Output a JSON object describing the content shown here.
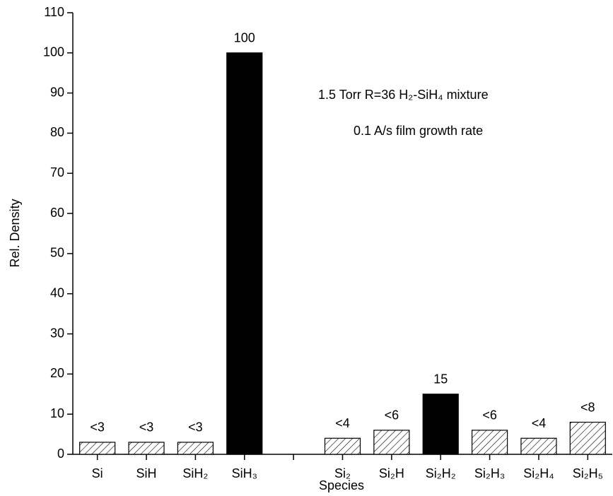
{
  "chart_data": {
    "type": "bar",
    "xlabel": "Species",
    "ylabel": "Rel. Density",
    "annotations": [
      "1.5 Torr R=36 H₂-SiH₄ mixture",
      "0.1 A/s film growth rate"
    ],
    "categories": [
      "Si",
      "SiH",
      "SiH₂",
      "SiH₃",
      null,
      "Si₂",
      "Si₂H",
      "Si₂H₂",
      "Si₂H₃",
      "Si₂H₄",
      "Si₂H₅"
    ],
    "values": [
      3,
      3,
      3,
      100,
      null,
      4,
      6,
      15,
      6,
      4,
      8
    ],
    "value_labels": [
      "<3",
      "<3",
      "<3",
      "100",
      null,
      "<4",
      "<6",
      "15",
      "<6",
      "<4",
      "<8"
    ],
    "bar_styles": [
      "hatched",
      "hatched",
      "hatched",
      "solid",
      null,
      "hatched",
      "hatched",
      "solid",
      "hatched",
      "hatched",
      "hatched"
    ],
    "color": "#000000",
    "ylim": [
      0,
      110
    ],
    "yticks": [
      0,
      10,
      20,
      30,
      40,
      50,
      60,
      70,
      80,
      90,
      100,
      110
    ],
    "grid": false
  }
}
